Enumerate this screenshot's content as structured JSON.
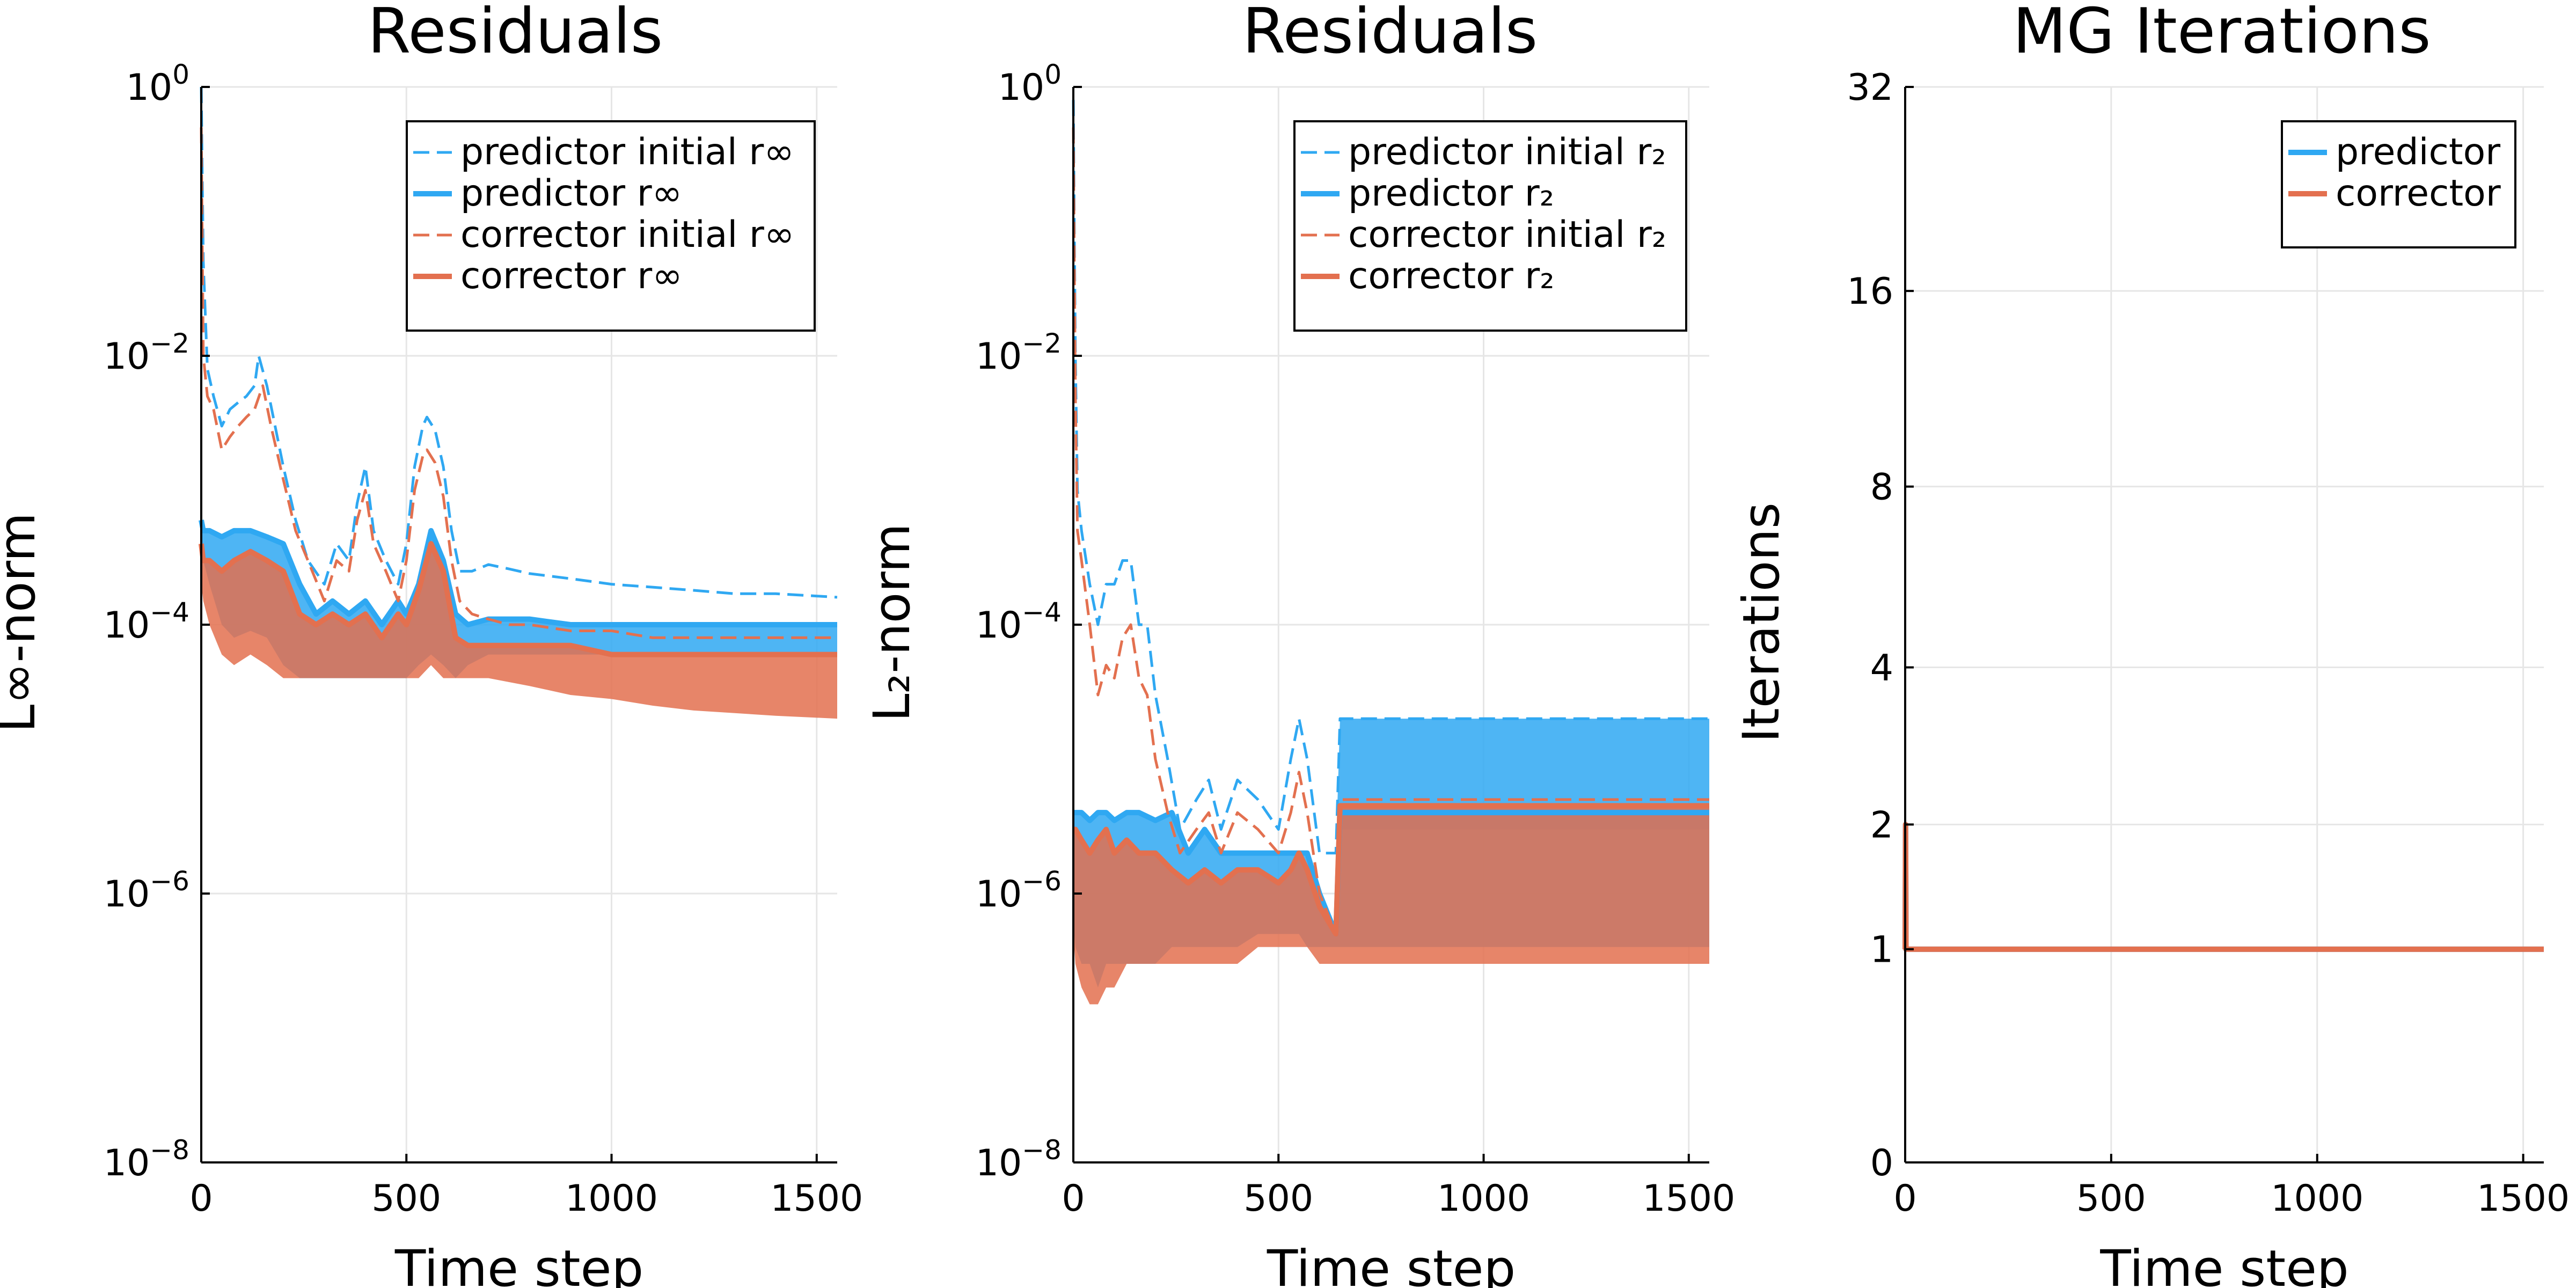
{
  "chart_data": [
    {
      "type": "line",
      "title": "Residuals",
      "xlabel": "Time step",
      "ylabel": "L∞-norm",
      "yscale": "log10",
      "xlim": [
        0,
        1550
      ],
      "ylim": [
        1e-08,
        1
      ],
      "x_ticks": [
        0,
        500,
        1000,
        1500
      ],
      "x_tick_labels": [
        "0",
        "500",
        "1000",
        "1500"
      ],
      "y_ticks": [
        1e-08,
        1e-06,
        0.0001,
        0.01,
        1
      ],
      "y_tick_labels": [
        {
          "base": "10",
          "exp": "−8"
        },
        {
          "base": "10",
          "exp": "−6"
        },
        {
          "base": "10",
          "exp": "−4"
        },
        {
          "base": "10",
          "exp": "−2"
        },
        {
          "base": "10",
          "exp": "0"
        }
      ],
      "grid": true,
      "legend_position": "top-right",
      "series": [
        {
          "name": "predictor initial r∞",
          "color": "#2fa8f2",
          "style": "dashed",
          "x": [
            0,
            5,
            15,
            30,
            50,
            70,
            90,
            110,
            130,
            140,
            160,
            180,
            200,
            230,
            260,
            300,
            330,
            360,
            380,
            400,
            420,
            450,
            480,
            500,
            520,
            540,
            550,
            570,
            590,
            610,
            630,
            660,
            700,
            750,
            800,
            900,
            1000,
            1100,
            1200,
            1300,
            1400,
            1550
          ],
          "y": [
            1.0,
            0.05,
            0.008,
            0.005,
            0.003,
            0.004,
            0.0045,
            0.005,
            0.006,
            0.01,
            0.006,
            0.003,
            0.0015,
            0.0006,
            0.0003,
            0.0002,
            0.0004,
            0.0003,
            0.0008,
            0.0015,
            0.0005,
            0.0003,
            0.0002,
            0.0004,
            0.0015,
            0.003,
            0.0035,
            0.0028,
            0.0015,
            0.0005,
            0.00025,
            0.00025,
            0.00028,
            0.00026,
            0.00024,
            0.00022,
            0.0002,
            0.00019,
            0.00018,
            0.00017,
            0.00017,
            0.00016
          ]
        },
        {
          "name": "predictor r∞",
          "color": "#2fa8f2",
          "style": "solid",
          "x": [
            0,
            5,
            20,
            50,
            80,
            120,
            160,
            200,
            240,
            280,
            320,
            360,
            400,
            440,
            480,
            500,
            530,
            560,
            590,
            620,
            650,
            700,
            800,
            900,
            1000,
            1100,
            1200,
            1300,
            1400,
            1550
          ],
          "y": [
            0.0006,
            0.0005,
            0.0005,
            0.00045,
            0.0005,
            0.0005,
            0.00045,
            0.0004,
            0.0002,
            0.00012,
            0.00015,
            0.00012,
            0.00015,
            0.0001,
            0.00015,
            0.00012,
            0.0002,
            0.0005,
            0.0003,
            0.00012,
            0.0001,
            0.00011,
            0.00011,
            0.0001,
            0.0001,
            0.0001,
            0.0001,
            0.0001,
            0.0001,
            0.0001
          ],
          "band_low": [
            0.0004,
            0.0003,
            0.0002,
            0.0001,
            8e-05,
            9e-05,
            8e-05,
            5e-05,
            4e-05,
            4e-05,
            4e-05,
            4e-05,
            4e-05,
            4e-05,
            4e-05,
            4e-05,
            5e-05,
            6e-05,
            5e-05,
            4e-05,
            5e-05,
            6e-05,
            6e-05,
            6e-05,
            6e-05,
            6e-05,
            6e-05,
            6e-05,
            6e-05,
            6e-05
          ]
        },
        {
          "name": "corrector initial r∞",
          "color": "#e3704f",
          "style": "dashed",
          "x": [
            0,
            5,
            15,
            30,
            50,
            70,
            90,
            110,
            130,
            150,
            170,
            200,
            230,
            260,
            300,
            330,
            360,
            380,
            400,
            420,
            450,
            480,
            500,
            520,
            540,
            550,
            570,
            590,
            610,
            630,
            660,
            700,
            750,
            800,
            900,
            1000,
            1100,
            1200,
            1300,
            1400,
            1550
          ],
          "y": [
            0.5,
            0.01,
            0.005,
            0.004,
            0.002,
            0.0025,
            0.003,
            0.0035,
            0.004,
            0.006,
            0.003,
            0.0012,
            0.0005,
            0.0003,
            0.00015,
            0.0003,
            0.00025,
            0.0006,
            0.001,
            0.0004,
            0.00025,
            0.00015,
            0.0003,
            0.001,
            0.0018,
            0.002,
            0.0016,
            0.0009,
            0.0003,
            0.00015,
            0.00012,
            0.00011,
            0.0001,
            0.0001,
            9e-05,
            9e-05,
            8e-05,
            8e-05,
            8e-05,
            8e-05,
            8e-05
          ]
        },
        {
          "name": "corrector r∞",
          "color": "#e3704f",
          "style": "solid",
          "x": [
            0,
            5,
            20,
            50,
            80,
            120,
            160,
            200,
            240,
            280,
            320,
            360,
            400,
            440,
            480,
            500,
            530,
            560,
            590,
            620,
            650,
            700,
            800,
            900,
            1000,
            1100,
            1200,
            1300,
            1400,
            1550
          ],
          "y": [
            0.0004,
            0.0003,
            0.0003,
            0.00025,
            0.0003,
            0.00035,
            0.0003,
            0.00025,
            0.00012,
            0.0001,
            0.00012,
            0.0001,
            0.00012,
            8e-05,
            0.00012,
            0.0001,
            0.00018,
            0.0004,
            0.00025,
            8e-05,
            7e-05,
            7e-05,
            7e-05,
            7e-05,
            6e-05,
            6e-05,
            6e-05,
            6e-05,
            6e-05,
            6e-05
          ],
          "band_low": [
            0.0002,
            0.00015,
            0.0001,
            6e-05,
            5e-05,
            6e-05,
            5e-05,
            4e-05,
            4e-05,
            4e-05,
            4e-05,
            4e-05,
            4e-05,
            4e-05,
            4e-05,
            4e-05,
            4e-05,
            5e-05,
            4e-05,
            4e-05,
            4e-05,
            4e-05,
            3.5e-05,
            3e-05,
            2.8e-05,
            2.5e-05,
            2.3e-05,
            2.2e-05,
            2.1e-05,
            2e-05
          ]
        }
      ]
    },
    {
      "type": "line",
      "title": "Residuals",
      "xlabel": "Time step",
      "ylabel": "L₂-norm",
      "yscale": "log10",
      "xlim": [
        0,
        1550
      ],
      "ylim": [
        1e-08,
        1
      ],
      "x_ticks": [
        0,
        500,
        1000,
        1500
      ],
      "x_tick_labels": [
        "0",
        "500",
        "1000",
        "1500"
      ],
      "y_ticks": [
        1e-08,
        1e-06,
        0.0001,
        0.01,
        1
      ],
      "y_tick_labels": [
        {
          "base": "10",
          "exp": "−8"
        },
        {
          "base": "10",
          "exp": "−6"
        },
        {
          "base": "10",
          "exp": "−4"
        },
        {
          "base": "10",
          "exp": "−2"
        },
        {
          "base": "10",
          "exp": "0"
        }
      ],
      "grid": true,
      "legend_position": "top-right",
      "series": [
        {
          "name": "predictor initial r₂",
          "color": "#2fa8f2",
          "style": "dashed",
          "x": [
            0,
            5,
            10,
            20,
            40,
            60,
            80,
            100,
            120,
            140,
            160,
            180,
            200,
            230,
            260,
            300,
            330,
            360,
            400,
            450,
            500,
            530,
            550,
            570,
            600,
            640,
            650,
            700,
            800,
            900,
            1000,
            1100,
            1200,
            1300,
            1400,
            1550
          ],
          "y": [
            0.8,
            0.01,
            0.001,
            0.0005,
            0.0002,
            0.0001,
            0.0002,
            0.0002,
            0.0003,
            0.0003,
            0.0001,
            0.0001,
            3e-05,
            1e-05,
            3e-06,
            5e-06,
            7e-06,
            3e-06,
            7e-06,
            5e-06,
            3e-06,
            1e-05,
            2e-05,
            1e-05,
            2e-06,
            2e-06,
            2e-05,
            2e-05,
            2e-05,
            2e-05,
            2e-05,
            2e-05,
            2e-05,
            2e-05,
            2e-05,
            2e-05
          ],
          "band_low": [
            0.8,
            0.01,
            0.001,
            0.0005,
            0.0002,
            0.0001,
            0.0002,
            0.0002,
            0.0003,
            0.0003,
            0.0001,
            0.0001,
            3e-05,
            1e-05,
            3e-06,
            5e-06,
            7e-06,
            3e-06,
            7e-06,
            5e-06,
            3e-06,
            1e-05,
            2e-05,
            1e-05,
            2e-06,
            2e-06,
            3e-06,
            3e-06,
            3e-06,
            3e-06,
            3e-06,
            3e-06,
            3e-06,
            3e-06,
            3e-06,
            3e-06
          ]
        },
        {
          "name": "predictor r₂",
          "color": "#2fa8f2",
          "style": "solid",
          "x": [
            0,
            5,
            20,
            40,
            60,
            80,
            100,
            130,
            160,
            200,
            240,
            280,
            320,
            360,
            400,
            450,
            500,
            530,
            550,
            570,
            600,
            640,
            650,
            700,
            800,
            900,
            1000,
            1100,
            1200,
            1300,
            1400,
            1550
          ],
          "y": [
            4e-06,
            4e-06,
            4e-06,
            3.5e-06,
            4e-06,
            4e-06,
            3.5e-06,
            4e-06,
            4e-06,
            3.5e-06,
            4e-06,
            2e-06,
            3e-06,
            2e-06,
            2e-06,
            2e-06,
            2e-06,
            2e-06,
            2e-06,
            2e-06,
            1e-06,
            5e-07,
            4e-06,
            4e-06,
            4e-06,
            4e-06,
            4e-06,
            4e-06,
            4e-06,
            4e-06,
            4e-06,
            4e-06
          ],
          "band_low": [
            6e-07,
            4e-07,
            3e-07,
            3e-07,
            2e-07,
            3e-07,
            3e-07,
            3e-07,
            3e-07,
            3e-07,
            4e-07,
            4e-07,
            4e-07,
            4e-07,
            4e-07,
            5e-07,
            5e-07,
            5e-07,
            5e-07,
            4e-07,
            4e-07,
            4e-07,
            4e-07,
            4e-07,
            4e-07,
            4e-07,
            4e-07,
            4e-07,
            4e-07,
            4e-07,
            4e-07,
            4e-07
          ]
        },
        {
          "name": "corrector initial r₂",
          "color": "#e3704f",
          "style": "dashed",
          "x": [
            0,
            5,
            10,
            20,
            40,
            60,
            80,
            100,
            120,
            140,
            160,
            180,
            200,
            230,
            260,
            300,
            330,
            360,
            400,
            450,
            500,
            530,
            550,
            570,
            600,
            640,
            650,
            700,
            800,
            900,
            1000,
            1100,
            1200,
            1300,
            1400,
            1550
          ],
          "y": [
            0.5,
            0.005,
            0.0005,
            0.0003,
            0.0001,
            3e-05,
            5e-05,
            4e-05,
            8e-05,
            0.0001,
            4e-05,
            3e-05,
            1e-05,
            4e-06,
            2e-06,
            3e-06,
            4e-06,
            2e-06,
            4e-06,
            3e-06,
            2e-06,
            4e-06,
            8e-06,
            4e-06,
            1e-06,
            5e-07,
            5e-06,
            5e-06,
            5e-06,
            5e-06,
            5e-06,
            5e-06,
            5e-06,
            5e-06,
            5e-06,
            5e-06
          ]
        },
        {
          "name": "corrector r₂",
          "color": "#e3704f",
          "style": "solid",
          "x": [
            0,
            5,
            20,
            40,
            60,
            80,
            100,
            130,
            160,
            200,
            240,
            280,
            320,
            360,
            400,
            450,
            500,
            530,
            550,
            570,
            600,
            640,
            650,
            700,
            800,
            900,
            1000,
            1100,
            1200,
            1300,
            1400,
            1550
          ],
          "y": [
            3e-06,
            3e-06,
            2.5e-06,
            2e-06,
            2.5e-06,
            3e-06,
            2e-06,
            2.5e-06,
            2e-06,
            2e-06,
            1.5e-06,
            1.2e-06,
            1.5e-06,
            1.2e-06,
            1.5e-06,
            1.5e-06,
            1.2e-06,
            1.5e-06,
            2e-06,
            1.5e-06,
            8e-07,
            5e-07,
            4.5e-06,
            4.5e-06,
            4.5e-06,
            4.5e-06,
            4.5e-06,
            4.5e-06,
            4.5e-06,
            4.5e-06,
            4.5e-06,
            4.5e-06
          ],
          "band_low": [
            5e-07,
            3e-07,
            2e-07,
            1.5e-07,
            1.5e-07,
            2e-07,
            2e-07,
            3e-07,
            3e-07,
            3e-07,
            3e-07,
            3e-07,
            3e-07,
            3e-07,
            3e-07,
            4e-07,
            4e-07,
            4e-07,
            4e-07,
            4e-07,
            3e-07,
            3e-07,
            3e-07,
            3e-07,
            3e-07,
            3e-07,
            3e-07,
            3e-07,
            3e-07,
            3e-07,
            3e-07,
            3e-07
          ]
        }
      ]
    },
    {
      "type": "line",
      "title": "MG Iterations",
      "xlabel": "Time step",
      "ylabel": "Iterations",
      "yscale": "log2(y+1)",
      "xlim": [
        0,
        1550
      ],
      "ylim": [
        0,
        32
      ],
      "x_ticks": [
        0,
        500,
        1000,
        1500
      ],
      "x_tick_labels": [
        "0",
        "500",
        "1000",
        "1500"
      ],
      "y_ticks": [
        0,
        1,
        2,
        4,
        8,
        16,
        32
      ],
      "y_tick_labels": [
        "0",
        "1",
        "2",
        "4",
        "8",
        "16",
        "32"
      ],
      "grid": true,
      "legend_position": "top-right",
      "series": [
        {
          "name": "predictor",
          "color": "#2fa8f2",
          "style": "solid",
          "x": [
            0,
            1,
            2,
            1550
          ],
          "y": [
            1,
            2,
            1,
            1
          ]
        },
        {
          "name": "corrector",
          "color": "#e3704f",
          "style": "solid",
          "x": [
            0,
            1,
            2,
            1550
          ],
          "y": [
            1,
            2,
            1,
            1
          ]
        }
      ]
    }
  ]
}
